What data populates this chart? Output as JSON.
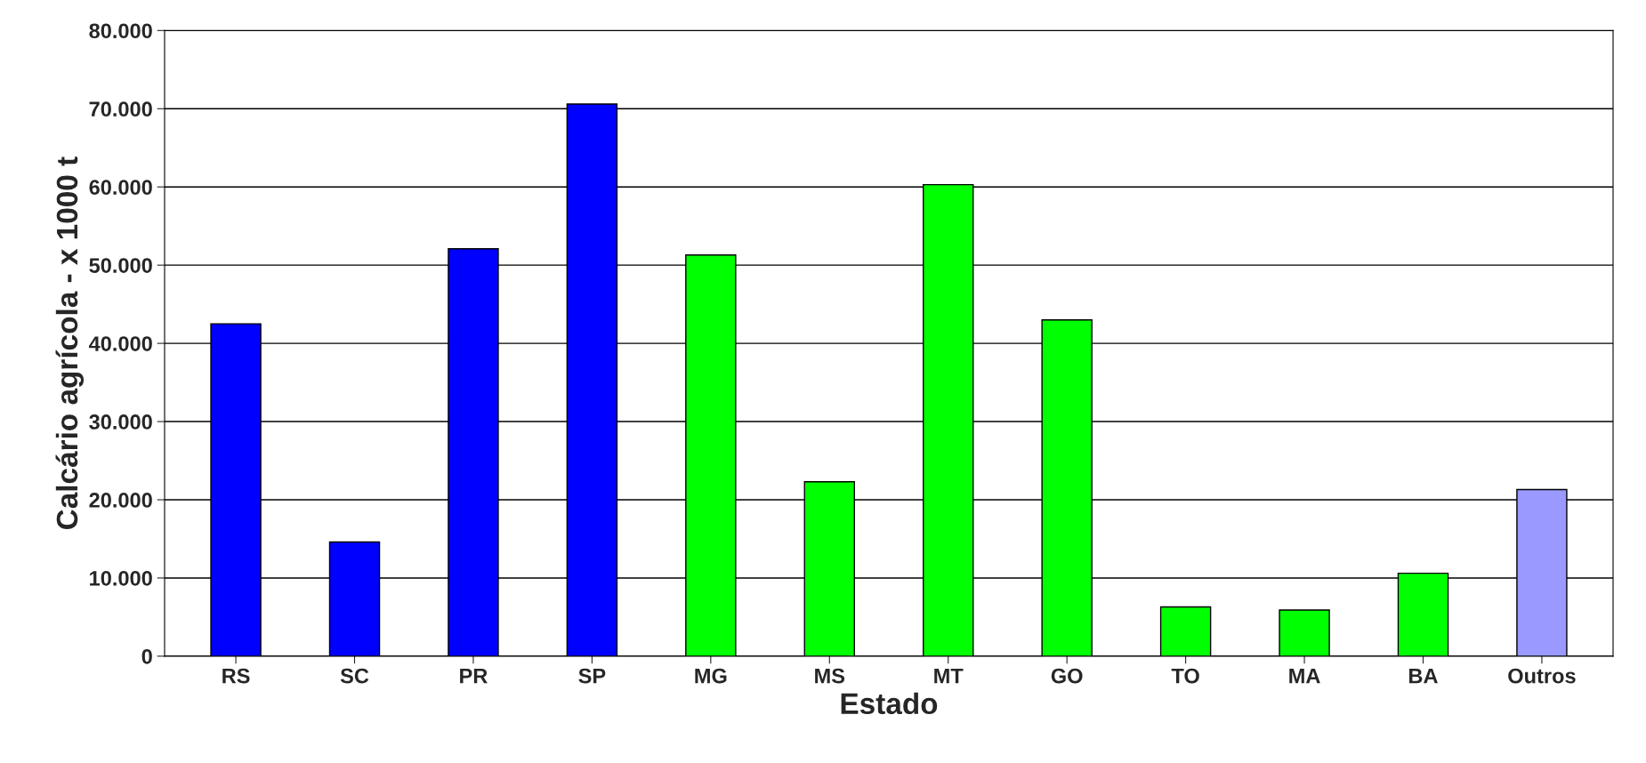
{
  "chart_data": {
    "type": "bar",
    "xlabel": "Estado",
    "ylabel": "Calcário agrícola - x 1000 t",
    "categories": [
      "RS",
      "SC",
      "PR",
      "SP",
      "MG",
      "MS",
      "MT",
      "GO",
      "TO",
      "MA",
      "BA",
      "Outros"
    ],
    "values": [
      42500,
      14600,
      52100,
      70600,
      51300,
      22300,
      60300,
      43000,
      6300,
      5900,
      10600,
      21300
    ],
    "colors": [
      "#0000ff",
      "#0000ff",
      "#0000ff",
      "#0000ff",
      "#00ff00",
      "#00ff00",
      "#00ff00",
      "#00ff00",
      "#00ff00",
      "#00ff00",
      "#00ff00",
      "#9999ff"
    ],
    "ylim": [
      0,
      80000
    ],
    "yticks": [
      0,
      {
        "value": 10000,
        "label": "10.000"
      },
      {
        "value": 20000,
        "label": "20.000"
      },
      {
        "value": 30000,
        "label": "30.000"
      },
      {
        "value": 40000,
        "label": "40.000"
      },
      {
        "value": 50000,
        "label": "50.000"
      },
      {
        "value": 60000,
        "label": "60.000"
      },
      {
        "value": 70000,
        "label": "70.000"
      },
      {
        "value": 80000,
        "label": "80.000"
      }
    ],
    "grid": "y"
  }
}
